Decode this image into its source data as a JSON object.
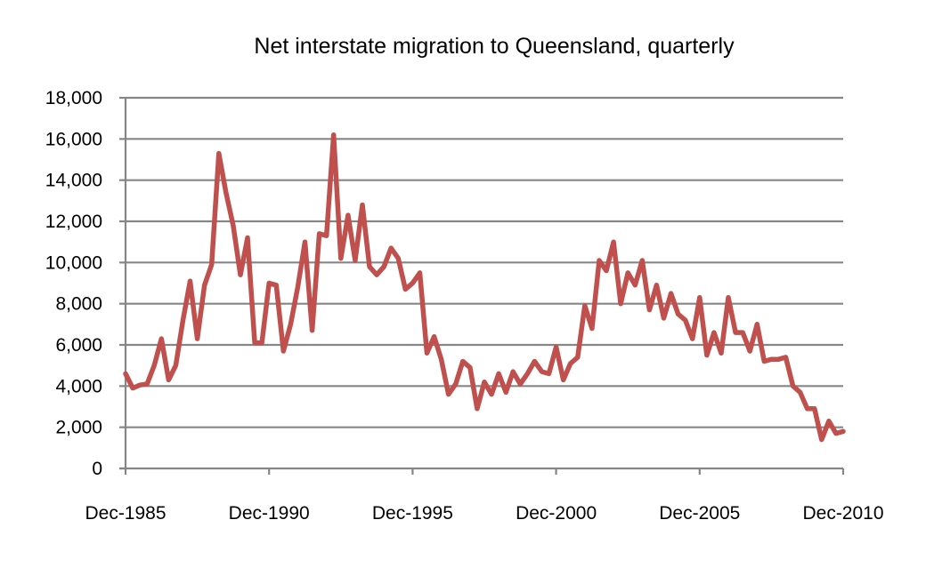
{
  "chart_data": {
    "type": "line",
    "title": "Net interstate migration to Queensland, quarterly",
    "xlabel": "",
    "ylabel": "",
    "ylim": [
      0,
      18000
    ],
    "yticks": [
      "0",
      "2,000",
      "4,000",
      "6,000",
      "8,000",
      "10,000",
      "12,000",
      "14,000",
      "16,000",
      "18,000"
    ],
    "ytick_values": [
      0,
      2000,
      4000,
      6000,
      8000,
      10000,
      12000,
      14000,
      16000,
      18000
    ],
    "xticks": [
      "Dec-1985",
      "Dec-1990",
      "Dec-1995",
      "Dec-2000",
      "Dec-2005",
      "Dec-2010"
    ],
    "x_start": "Dec-1985",
    "x_end": "Dec-2010",
    "x_frequency": "quarterly",
    "grid": true,
    "legend": "none",
    "series": [
      {
        "name": "Net interstate migration",
        "color": "#c0504d",
        "values": [
          4600,
          3900,
          4050,
          4100,
          5000,
          6300,
          4300,
          5000,
          7200,
          9100,
          6300,
          8900,
          9900,
          15300,
          13400,
          11800,
          9400,
          11200,
          6100,
          6100,
          9000,
          8900,
          5700,
          7000,
          8800,
          11000,
          6700,
          11400,
          11300,
          16200,
          10200,
          12300,
          10100,
          12800,
          9800,
          9400,
          9800,
          10700,
          10200,
          8700,
          9000,
          9500,
          5600,
          6400,
          5300,
          3600,
          4100,
          5200,
          4900,
          2900,
          4200,
          3600,
          4600,
          3700,
          4700,
          4100,
          4600,
          5200,
          4700,
          4600,
          5900,
          4300,
          5100,
          5400,
          7900,
          6800,
          10100,
          9600,
          11000,
          8000,
          9500,
          8900,
          10100,
          7700,
          8900,
          7300,
          8500,
          7500,
          7200,
          6300,
          8300,
          5500,
          6600,
          5600,
          8300,
          6600,
          6600,
          5700,
          7000,
          5200,
          5300,
          5300,
          5400,
          4000,
          3700,
          2900,
          2900,
          1400,
          2300,
          1700,
          1800
        ]
      }
    ]
  }
}
